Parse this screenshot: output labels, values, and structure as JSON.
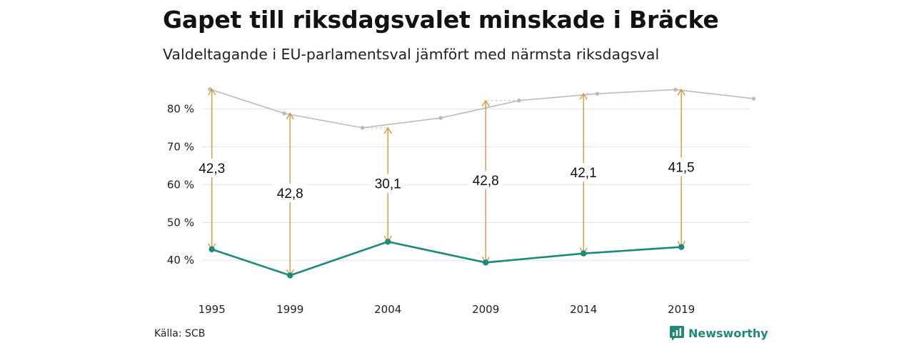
{
  "title": "Gapet till riksdagsvalet minskade i Bräcke",
  "subtitle": "Valdeltagande i EU-parlamentsval jämfört med närmsta riksdagsval",
  "source": "Källa: SCB",
  "brand": {
    "name": "Newsworthy",
    "icon": "newsworthy-logo-icon"
  },
  "colors": {
    "eu": "#1a8a7a",
    "riksdag": "#bdb8c8",
    "arrow": "#d29a3a",
    "grid": "#e2e2e2"
  },
  "chart_data": {
    "type": "line",
    "ylim": [
      34,
      88
    ],
    "yticks": [
      40,
      50,
      60,
      70,
      80
    ],
    "ytick_labels": [
      "40 %",
      "50 %",
      "60 %",
      "70 %",
      "80 %"
    ],
    "xlim": [
      1994.5,
      2022.5
    ],
    "xticks": [
      1995,
      1999,
      2004,
      2009,
      2014,
      2019
    ],
    "xtick_labels": [
      "1995",
      "1999",
      "2004",
      "2009",
      "2014",
      "2019"
    ],
    "series": [
      {
        "key": "riksdag",
        "points": [
          [
            1994.9,
            85.2
          ],
          [
            1998.7,
            78.8
          ],
          [
            2002.7,
            75.0
          ],
          [
            2006.7,
            77.6
          ],
          [
            2010.7,
            82.2
          ],
          [
            2014.7,
            84.0
          ],
          [
            2018.7,
            85.1
          ],
          [
            2022.7,
            82.7
          ]
        ]
      },
      {
        "key": "eu",
        "points": [
          [
            1995,
            42.9
          ],
          [
            1999,
            36.0
          ],
          [
            2004,
            44.9
          ],
          [
            2009,
            39.4
          ],
          [
            2014,
            41.8
          ],
          [
            2019,
            43.5
          ]
        ]
      }
    ],
    "gaps": [
      {
        "x": 1995,
        "eu": 42.9,
        "riksdag": 85.2,
        "label": "42,3"
      },
      {
        "x": 1999,
        "eu": 36.0,
        "riksdag": 78.8,
        "label": "42,8"
      },
      {
        "x": 2004,
        "eu": 44.9,
        "riksdag": 75.0,
        "label": "30,1"
      },
      {
        "x": 2009,
        "eu": 39.4,
        "riksdag": 82.2,
        "label": "42,8"
      },
      {
        "x": 2014,
        "eu": 41.8,
        "riksdag": 84.0,
        "label": "42,1"
      },
      {
        "x": 2019,
        "eu": 43.5,
        "riksdag": 85.1,
        "label": "41,5"
      }
    ]
  }
}
